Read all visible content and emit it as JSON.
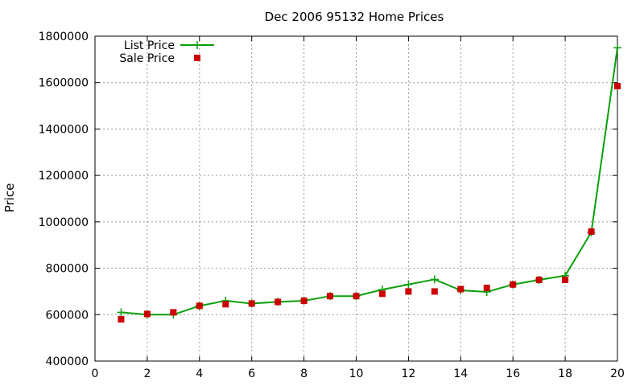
{
  "chart_data": {
    "type": "line",
    "title": "Dec 2006 95132 Home Prices",
    "xlabel": "",
    "ylabel": "Price",
    "xlim": [
      0,
      20
    ],
    "ylim": [
      400000,
      1800000
    ],
    "x_ticks": [
      0,
      2,
      4,
      6,
      8,
      10,
      12,
      14,
      16,
      18,
      20
    ],
    "y_ticks": [
      400000,
      600000,
      800000,
      1000000,
      1200000,
      1400000,
      1600000,
      1800000
    ],
    "grid": true,
    "legend_position": "top-left",
    "series": [
      {
        "name": "List Price",
        "style": "line-with-plus-markers",
        "color": "#0aa00a",
        "x": [
          1,
          2,
          3,
          4,
          5,
          6,
          7,
          8,
          9,
          10,
          11,
          12,
          13,
          14,
          15,
          16,
          17,
          18,
          19,
          20
        ],
        "values": [
          610000,
          600000,
          600000,
          638000,
          660000,
          648000,
          655000,
          660000,
          680000,
          680000,
          708000,
          730000,
          752000,
          705000,
          698000,
          730000,
          750000,
          768000,
          955000,
          1750000
        ]
      },
      {
        "name": "Sale Price",
        "style": "square-markers",
        "color": "#cc0000",
        "x": [
          1,
          2,
          3,
          4,
          5,
          6,
          7,
          8,
          9,
          10,
          11,
          12,
          13,
          14,
          15,
          16,
          17,
          18,
          19,
          20
        ],
        "values": [
          580000,
          603000,
          610000,
          638000,
          645000,
          648000,
          655000,
          660000,
          680000,
          680000,
          690000,
          700000,
          700000,
          710000,
          715000,
          730000,
          750000,
          750000,
          958000,
          1585000
        ]
      }
    ]
  }
}
